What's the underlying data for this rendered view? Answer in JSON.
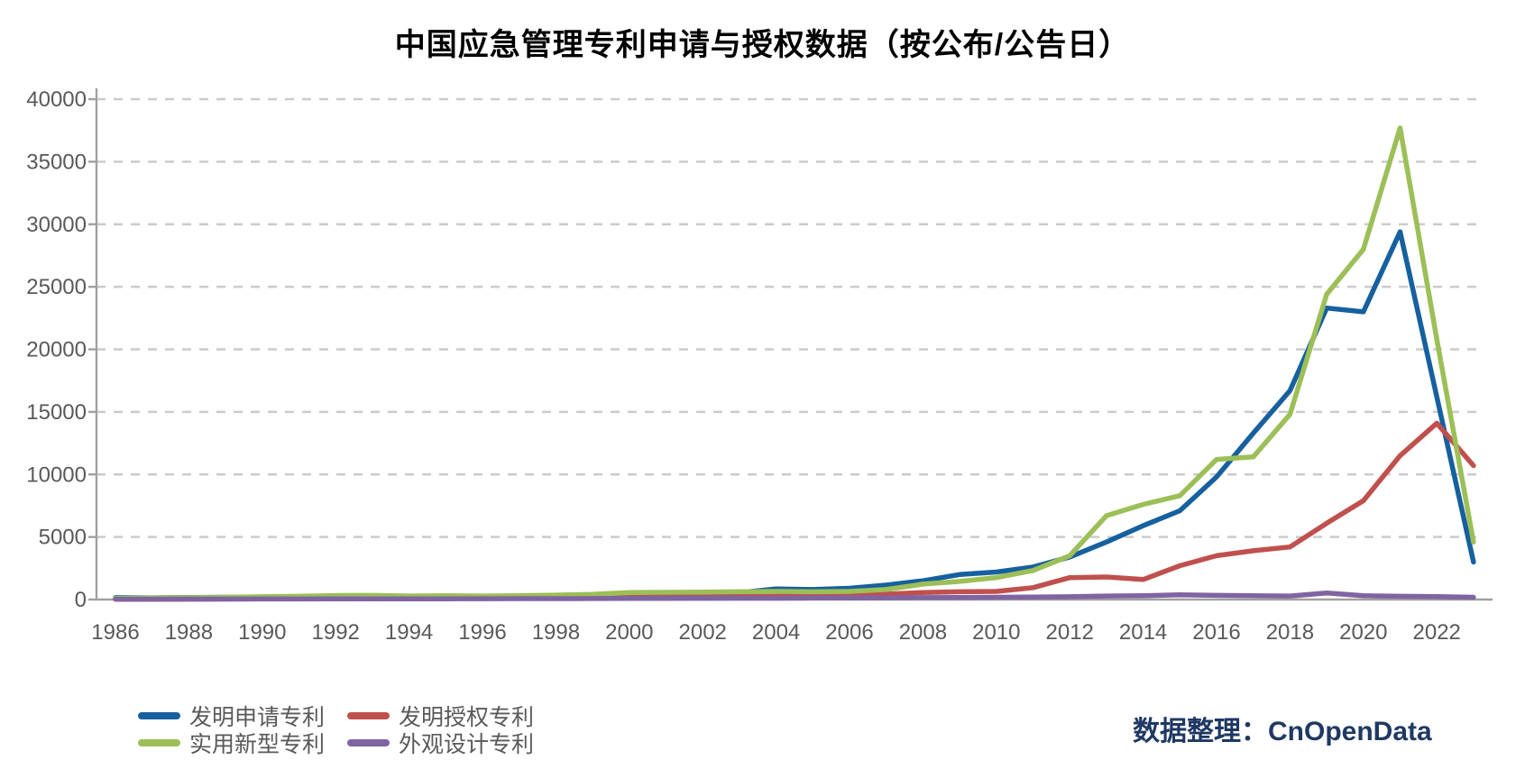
{
  "title": "中国应急管理专利申请与授权数据（按公布/公告日）",
  "source_credit": "数据整理：CnOpenData",
  "colors": {
    "blue": "#16609F",
    "red": "#C0504D",
    "green": "#9CBF57",
    "purple": "#8064A2",
    "axis": "#A0A0A0",
    "grid": "#CBCBCB",
    "tick_label": "#595959",
    "credit": "#1F3864",
    "title": "#000000"
  },
  "chart_data": {
    "type": "line",
    "title": "中国应急管理专利申请与授权数据（按公布/公告日）",
    "xlabel": "",
    "ylabel": "",
    "x": [
      1986,
      1987,
      1988,
      1989,
      1990,
      1991,
      1992,
      1993,
      1994,
      1995,
      1996,
      1997,
      1998,
      1999,
      2000,
      2001,
      2002,
      2003,
      2004,
      2005,
      2006,
      2007,
      2008,
      2009,
      2010,
      2011,
      2012,
      2013,
      2014,
      2015,
      2016,
      2017,
      2018,
      2019,
      2020,
      2021,
      2022,
      2023
    ],
    "x_tick_labels": [
      "1986",
      "1988",
      "1990",
      "1992",
      "1994",
      "1996",
      "1998",
      "2000",
      "2002",
      "2004",
      "2006",
      "2008",
      "2010",
      "2012",
      "2014",
      "2016",
      "2018",
      "2020",
      "2022"
    ],
    "ylim": [
      0,
      40000
    ],
    "y_ticks": [
      0,
      5000,
      10000,
      15000,
      20000,
      25000,
      30000,
      35000,
      40000
    ],
    "grid": "horizontal dashed",
    "legend_position": "bottom-left, two columns",
    "series": [
      {
        "name": "发明申请专利",
        "key": "invention-application",
        "color_key": "blue",
        "values": [
          150,
          140,
          160,
          180,
          190,
          200,
          220,
          230,
          220,
          230,
          240,
          260,
          280,
          300,
          380,
          420,
          460,
          550,
          850,
          800,
          900,
          1150,
          1500,
          2000,
          2200,
          2600,
          3400,
          4600,
          5900,
          7100,
          9800,
          13300,
          16700,
          23300,
          23000,
          29400,
          16200,
          3000
        ]
      },
      {
        "name": "发明授权专利",
        "key": "invention-grant",
        "color_key": "red",
        "values": [
          20,
          25,
          30,
          40,
          50,
          60,
          70,
          80,
          90,
          100,
          110,
          120,
          130,
          140,
          160,
          180,
          200,
          230,
          260,
          300,
          360,
          430,
          560,
          620,
          650,
          950,
          1750,
          1800,
          1600,
          2700,
          3500,
          3900,
          4200,
          6100,
          7900,
          11500,
          14100,
          10700
        ]
      },
      {
        "name": "实用新型专利",
        "key": "utility-model",
        "color_key": "green",
        "values": [
          100,
          120,
          150,
          180,
          220,
          260,
          320,
          330,
          280,
          300,
          280,
          300,
          350,
          420,
          560,
          580,
          600,
          620,
          650,
          620,
          650,
          800,
          1230,
          1450,
          1750,
          2320,
          3500,
          6700,
          7600,
          8300,
          11200,
          11400,
          14800,
          24400,
          28000,
          37700,
          20800,
          4600
        ]
      },
      {
        "name": "外观设计专利",
        "key": "design",
        "color_key": "purple",
        "values": [
          30,
          30,
          35,
          35,
          40,
          45,
          50,
          55,
          55,
          60,
          65,
          70,
          75,
          80,
          90,
          95,
          100,
          105,
          110,
          120,
          130,
          140,
          150,
          165,
          180,
          200,
          220,
          280,
          300,
          380,
          330,
          300,
          280,
          520,
          300,
          260,
          230,
          180
        ]
      }
    ]
  }
}
